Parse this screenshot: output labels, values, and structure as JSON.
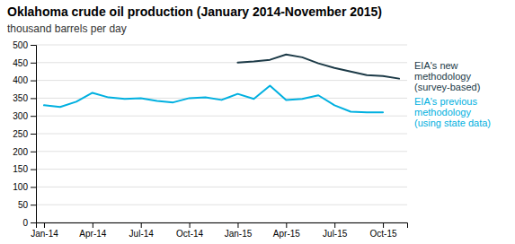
{
  "chart_data": {
    "type": "line",
    "title": "Oklahoma crude oil production (January 2014-November 2015)",
    "subtitle": "thousand barrels per day",
    "categories": [
      "Jan-14",
      null,
      null,
      "Apr-14",
      null,
      null,
      "Jul-14",
      null,
      null,
      "Oct-14",
      null,
      null,
      "Jan-15",
      null,
      null,
      "Apr-15",
      null,
      null,
      "Jul-15",
      null,
      null,
      "Oct-15",
      null
    ],
    "series": [
      {
        "name": "EIA's new\nmethodology\n(survey-based)",
        "color": "#1c3a47",
        "values": [
          null,
          null,
          null,
          null,
          null,
          null,
          null,
          null,
          null,
          null,
          null,
          null,
          450,
          453,
          458,
          473,
          465,
          448,
          435,
          425,
          415,
          412,
          405
        ]
      },
      {
        "name": "EIA's previous\nmethodology\n(using state data)",
        "color": "#00b0e0",
        "values": [
          330,
          325,
          340,
          365,
          352,
          348,
          350,
          342,
          338,
          350,
          352,
          345,
          362,
          348,
          385,
          345,
          348,
          358,
          330,
          312,
          310,
          310,
          null
        ]
      }
    ],
    "ylim": [
      0,
      500
    ],
    "yticks": [
      0,
      50,
      100,
      150,
      200,
      250,
      300,
      350,
      400,
      450,
      500
    ],
    "grid": "y"
  }
}
